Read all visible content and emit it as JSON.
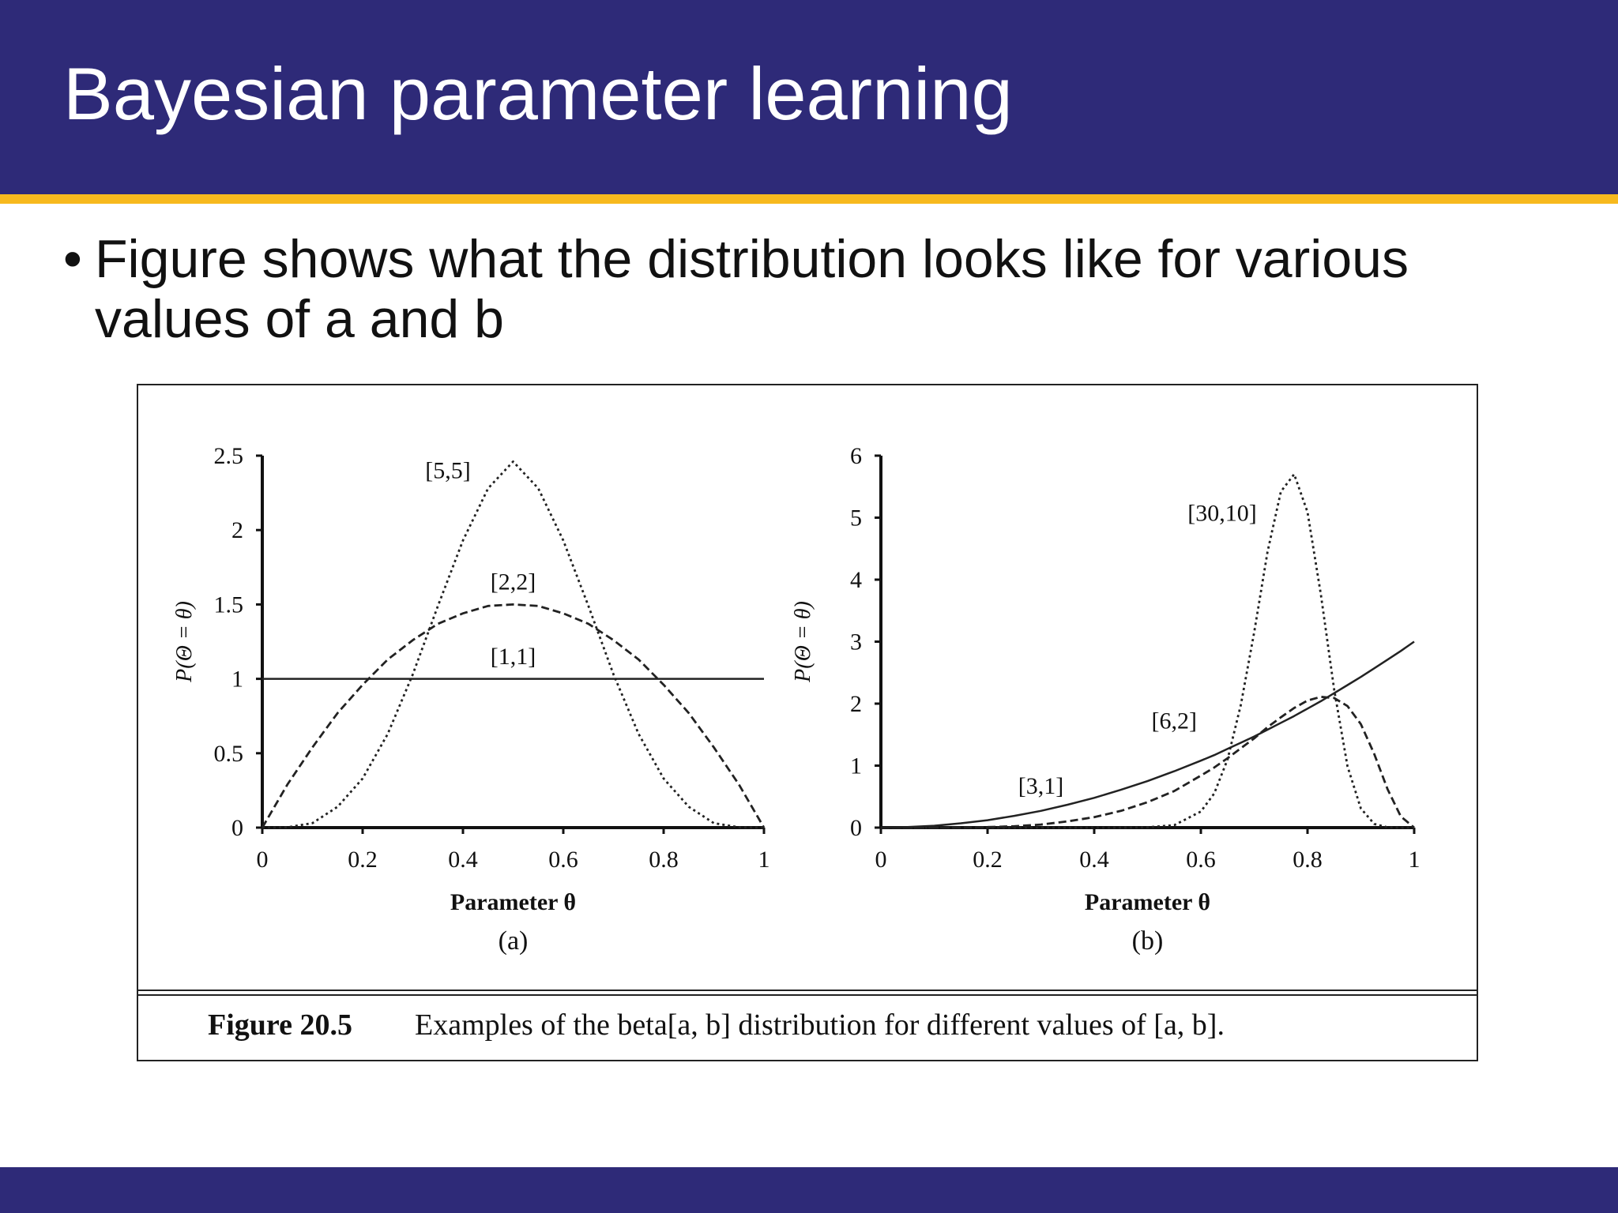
{
  "slide": {
    "title": "Bayesian parameter learning",
    "bullet_marker": "•",
    "bullet_text": "Figure shows what the distribution looks like for various values of a and b"
  },
  "figure": {
    "caption_label": "Figure 20.5",
    "caption_text": "Examples of the beta[a, b] distribution for different values of [a, b]."
  },
  "colors": {
    "header_bg": "#2e2a78",
    "accent_rule": "#f7b91e",
    "footer_bg": "#2e2a78"
  },
  "chart_data": [
    {
      "type": "line",
      "panel_label": "(a)",
      "xlabel": "Parameter θ",
      "ylabel": "P(Θ = θ)",
      "xlim": [
        0,
        1
      ],
      "ylim": [
        0,
        2.5
      ],
      "x_ticks": [
        "0",
        "0.2",
        "0.4",
        "0.6",
        "0.8",
        "1"
      ],
      "y_ticks": [
        "0",
        "0.5",
        "1",
        "1.5",
        "2",
        "2.5"
      ],
      "x": [
        0,
        0.05,
        0.1,
        0.15,
        0.2,
        0.25,
        0.3,
        0.35,
        0.4,
        0.45,
        0.5,
        0.55,
        0.6,
        0.65,
        0.7,
        0.75,
        0.8,
        0.85,
        0.9,
        0.95,
        1
      ],
      "series": [
        {
          "name": "[1,1]",
          "style": "solid",
          "label_at": [
            0.5,
            1.1
          ],
          "values": [
            1,
            1,
            1,
            1,
            1,
            1,
            1,
            1,
            1,
            1,
            1,
            1,
            1,
            1,
            1,
            1,
            1,
            1,
            1,
            1,
            1
          ]
        },
        {
          "name": "[2,2]",
          "style": "dashed",
          "label_at": [
            0.5,
            1.6
          ],
          "values": [
            0,
            0.29,
            0.54,
            0.77,
            0.96,
            1.13,
            1.26,
            1.37,
            1.44,
            1.49,
            1.5,
            1.49,
            1.44,
            1.37,
            1.26,
            1.13,
            0.96,
            0.77,
            0.54,
            0.29,
            0
          ]
        },
        {
          "name": "[5,5]",
          "style": "dotted",
          "label_at": [
            0.37,
            2.35
          ],
          "values": [
            0,
            0.002,
            0.03,
            0.14,
            0.33,
            0.63,
            1.03,
            1.49,
            1.93,
            2.28,
            2.46,
            2.28,
            1.93,
            1.49,
            1.03,
            0.63,
            0.33,
            0.14,
            0.03,
            0.002,
            0
          ]
        }
      ]
    },
    {
      "type": "line",
      "panel_label": "(b)",
      "xlabel": "Parameter θ",
      "ylabel": "P(Θ = θ)",
      "xlim": [
        0,
        1
      ],
      "ylim": [
        0,
        6
      ],
      "x_ticks": [
        "0",
        "0.2",
        "0.4",
        "0.6",
        "0.8",
        "1"
      ],
      "y_ticks": [
        "0",
        "1",
        "2",
        "3",
        "4",
        "5",
        "6"
      ],
      "x": [
        0,
        0.05,
        0.1,
        0.15,
        0.2,
        0.25,
        0.3,
        0.35,
        0.4,
        0.45,
        0.5,
        0.55,
        0.6,
        0.625,
        0.65,
        0.675,
        0.7,
        0.725,
        0.75,
        0.775,
        0.8,
        0.825,
        0.85,
        0.875,
        0.9,
        0.925,
        0.95,
        0.975,
        1
      ],
      "series": [
        {
          "name": "[3,1]",
          "style": "solid",
          "label_at": [
            0.3,
            0.55
          ],
          "values": [
            0,
            0.01,
            0.03,
            0.07,
            0.12,
            0.19,
            0.27,
            0.37,
            0.48,
            0.61,
            0.75,
            0.91,
            1.08,
            1.17,
            1.27,
            1.37,
            1.47,
            1.58,
            1.69,
            1.8,
            1.92,
            2.04,
            2.17,
            2.3,
            2.43,
            2.57,
            2.71,
            2.85,
            3.0
          ]
        },
        {
          "name": "[6,2]",
          "style": "dashed",
          "label_at": [
            0.55,
            1.6
          ],
          "values": [
            0,
            0.0001,
            0.0005,
            0.003,
            0.009,
            0.022,
            0.05,
            0.1,
            0.17,
            0.27,
            0.41,
            0.59,
            0.84,
            0.97,
            1.12,
            1.28,
            1.44,
            1.62,
            1.78,
            1.93,
            2.05,
            2.11,
            2.09,
            1.96,
            1.67,
            1.19,
            0.62,
            0.18,
            0
          ]
        },
        {
          "name": "[30,10]",
          "style": "dotted",
          "label_at": [
            0.64,
            4.95
          ],
          "values": [
            0,
            0,
            0,
            0,
            0,
            0,
            0,
            0,
            0,
            0.0005,
            0.005,
            0.04,
            0.26,
            0.55,
            1.1,
            1.98,
            3.15,
            4.45,
            5.42,
            5.7,
            5.09,
            3.76,
            2.22,
            0.99,
            0.31,
            0.06,
            0.005,
            0,
            0
          ]
        }
      ]
    }
  ]
}
